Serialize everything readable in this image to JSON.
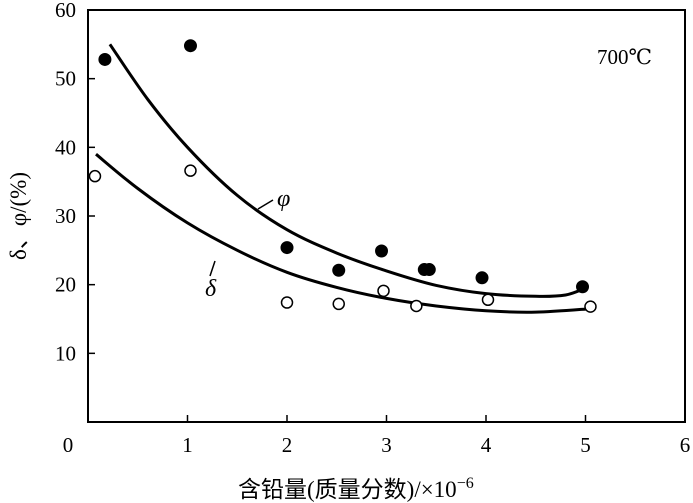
{
  "chart_data": {
    "type": "scatter",
    "xlabel": "含铅量(质量分数)/×10",
    "xlabel_exponent": "−6",
    "ylabel": "δ、φ/(%)",
    "xlim": [
      0,
      6
    ],
    "ylim": [
      0,
      60
    ],
    "x_ticks": [
      "0",
      "1",
      "2",
      "3",
      "4",
      "5",
      "6"
    ],
    "y_ticks": [
      "10",
      "20",
      "30",
      "40",
      "50",
      "60"
    ],
    "annotation": "700℃",
    "grid": false,
    "series": [
      {
        "name": "φ",
        "marker": "filled-circle",
        "points": [
          {
            "x": 0.17,
            "y": 52.8
          },
          {
            "x": 1.03,
            "y": 54.8
          },
          {
            "x": 2.0,
            "y": 25.4
          },
          {
            "x": 2.52,
            "y": 22.1
          },
          {
            "x": 2.95,
            "y": 24.9
          },
          {
            "x": 3.38,
            "y": 22.2
          },
          {
            "x": 3.43,
            "y": 22.2
          },
          {
            "x": 3.96,
            "y": 21.0
          },
          {
            "x": 4.97,
            "y": 19.7
          }
        ],
        "fit_curve": [
          {
            "x": 0.22,
            "y": 55.0
          },
          {
            "x": 0.6,
            "y": 47.0
          },
          {
            "x": 1.0,
            "y": 40.0
          },
          {
            "x": 1.5,
            "y": 33.0
          },
          {
            "x": 2.0,
            "y": 28.0
          },
          {
            "x": 2.5,
            "y": 24.6
          },
          {
            "x": 3.0,
            "y": 22.0
          },
          {
            "x": 3.5,
            "y": 19.9
          },
          {
            "x": 4.0,
            "y": 18.7
          },
          {
            "x": 4.5,
            "y": 18.3
          },
          {
            "x": 4.8,
            "y": 18.5
          },
          {
            "x": 5.0,
            "y": 19.5
          }
        ]
      },
      {
        "name": "δ",
        "marker": "open-circle",
        "points": [
          {
            "x": 0.07,
            "y": 35.8
          },
          {
            "x": 1.03,
            "y": 36.6
          },
          {
            "x": 2.0,
            "y": 17.4
          },
          {
            "x": 2.52,
            "y": 17.2
          },
          {
            "x": 2.97,
            "y": 19.1
          },
          {
            "x": 3.3,
            "y": 16.9
          },
          {
            "x": 4.02,
            "y": 17.8
          },
          {
            "x": 5.05,
            "y": 16.8
          }
        ],
        "fit_curve": [
          {
            "x": 0.08,
            "y": 39.0
          },
          {
            "x": 0.5,
            "y": 34.0
          },
          {
            "x": 1.0,
            "y": 29.0
          },
          {
            "x": 1.5,
            "y": 25.0
          },
          {
            "x": 2.0,
            "y": 21.8
          },
          {
            "x": 2.5,
            "y": 19.6
          },
          {
            "x": 3.0,
            "y": 18.0
          },
          {
            "x": 3.5,
            "y": 16.9
          },
          {
            "x": 4.0,
            "y": 16.2
          },
          {
            "x": 4.5,
            "y": 16.0
          },
          {
            "x": 5.05,
            "y": 16.5
          }
        ]
      }
    ]
  }
}
